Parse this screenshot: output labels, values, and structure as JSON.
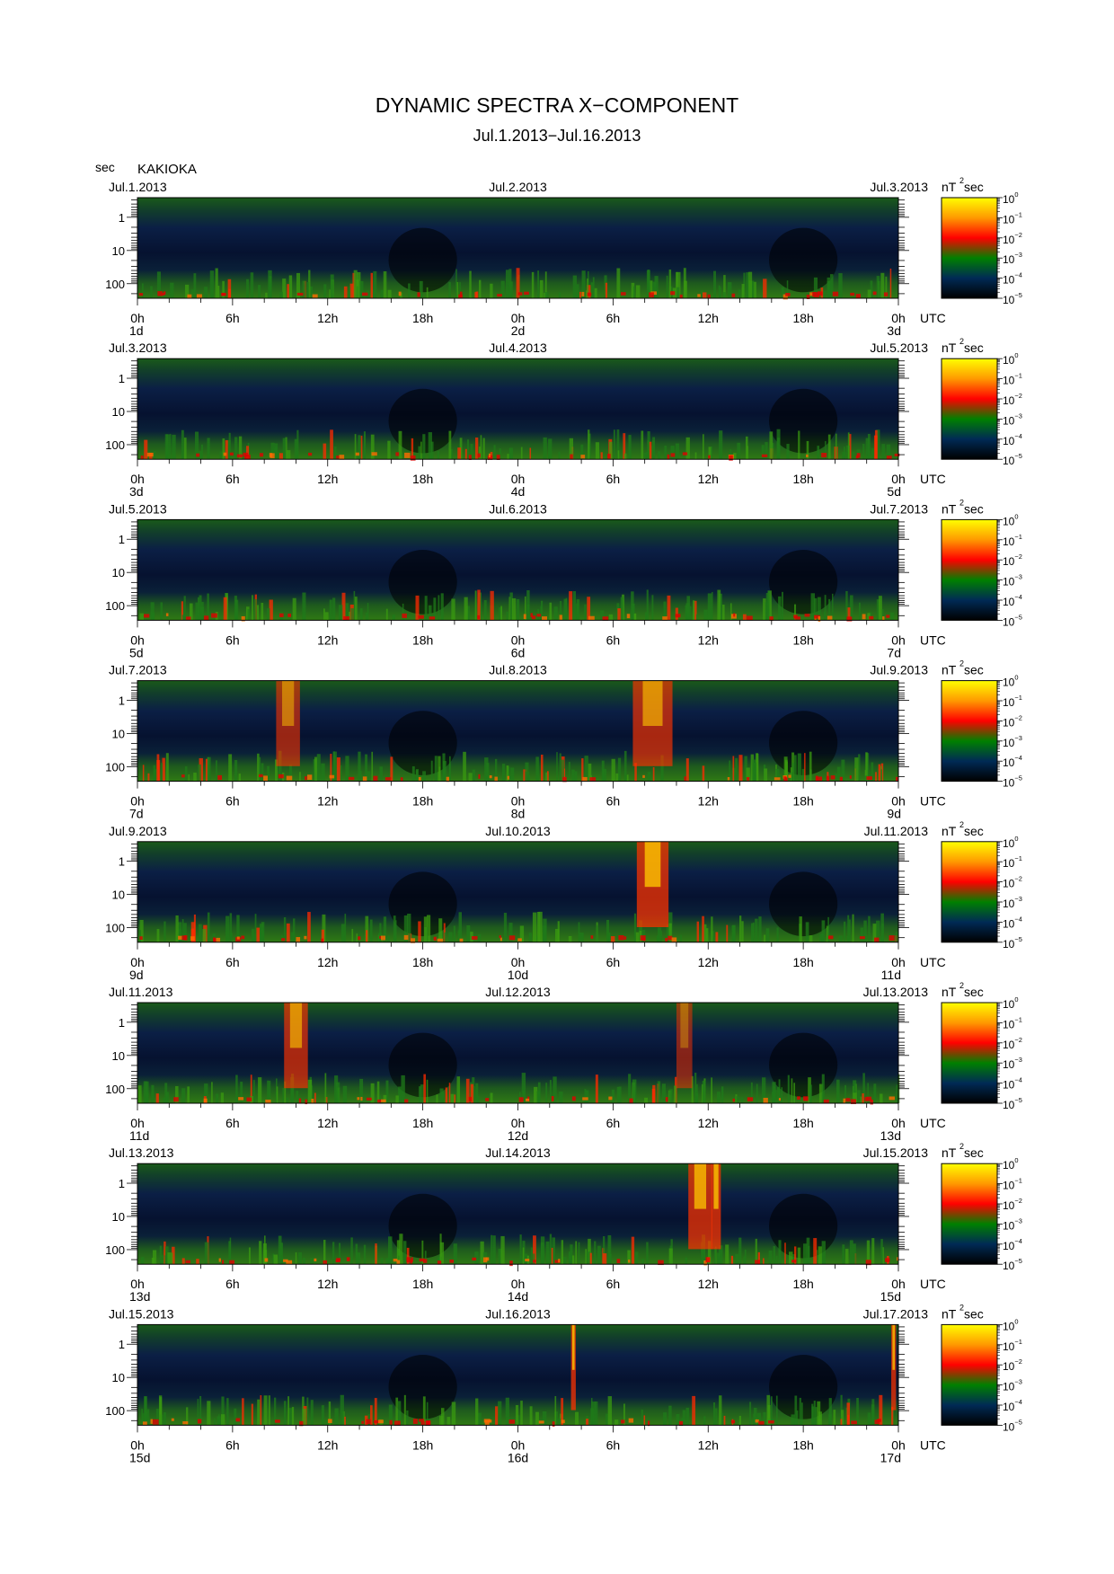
{
  "title": "DYNAMIC SPECTRA X−COMPONENT",
  "subtitle": "Jul.1.2013−Jul.16.2013",
  "y_unit": "sec",
  "station": "KAKIOKA",
  "colorbar": {
    "unit_base": "nT",
    "unit_exp": "2",
    "unit_tail": "sec",
    "labels": [
      {
        "base": "10",
        "exp": "0"
      },
      {
        "base": "10",
        "exp": "−1"
      },
      {
        "base": "10",
        "exp": "−2"
      },
      {
        "base": "10",
        "exp": "−3"
      },
      {
        "base": "10",
        "exp": "−4"
      },
      {
        "base": "10",
        "exp": "−5"
      }
    ],
    "colors": [
      "#ffff00",
      "#ff9900",
      "#ff0000",
      "#008000",
      "#002a55",
      "#000000"
    ]
  },
  "chart_data": {
    "type": "heatmap",
    "y_axis": {
      "label": "sec",
      "ticks": [
        "1",
        "10",
        "100"
      ],
      "scale": "log"
    },
    "x_axis": {
      "tick_labels": [
        "0h",
        "6h",
        "12h",
        "18h",
        "0h",
        "6h",
        "12h",
        "18h",
        "0h"
      ],
      "utc_label": "UTC"
    },
    "color_scale": {
      "scale": "log",
      "min": 1e-05,
      "max": 1,
      "unit": "nT^2 sec"
    },
    "panels": [
      {
        "date_left": "Jul.1.2013",
        "date_mid": "Jul.2.2013",
        "date_right": "Jul.3.2013",
        "day_left": "1d",
        "day_mid": "2d",
        "day_right": "3d",
        "events": []
      },
      {
        "date_left": "Jul.3.2013",
        "date_mid": "Jul.4.2013",
        "date_right": "Jul.5.2013",
        "day_left": "3d",
        "day_mid": "4d",
        "day_right": "5d",
        "events": []
      },
      {
        "date_left": "Jul.5.2013",
        "date_mid": "Jul.6.2013",
        "date_right": "Jul.7.2013",
        "day_left": "5d",
        "day_mid": "6d",
        "day_right": "7d",
        "events": []
      },
      {
        "date_left": "Jul.7.2013",
        "date_mid": "Jul.8.2013",
        "date_right": "Jul.9.2013",
        "day_left": "7d",
        "day_mid": "8d",
        "day_right": "9d",
        "events": [
          {
            "hour": 9.5,
            "width_h": 1.5,
            "level": 0.6
          },
          {
            "hour": 32.5,
            "width_h": 2.5,
            "level": 0.75
          }
        ]
      },
      {
        "date_left": "Jul.9.2013",
        "date_mid": "Jul.10.2013",
        "date_right": "Jul.11.2013",
        "day_left": "9d",
        "day_mid": "10d",
        "day_right": "11d",
        "events": [
          {
            "hour": 32.5,
            "width_h": 2.0,
            "level": 0.95
          }
        ]
      },
      {
        "date_left": "Jul.11.2013",
        "date_mid": "Jul.12.2013",
        "date_right": "Jul.13.2013",
        "day_left": "11d",
        "day_mid": "12d",
        "day_right": "13d",
        "events": [
          {
            "hour": 10.0,
            "width_h": 1.5,
            "level": 0.75
          },
          {
            "hour": 34.5,
            "width_h": 1.0,
            "level": 0.4
          }
        ]
      },
      {
        "date_left": "Jul.13.2013",
        "date_mid": "Jul.14.2013",
        "date_right": "Jul.15.2013",
        "day_left": "13d",
        "day_mid": "14d",
        "day_right": "15d",
        "events": [
          {
            "hour": 35.5,
            "width_h": 1.5,
            "level": 0.9
          },
          {
            "hour": 36.5,
            "width_h": 0.6,
            "level": 0.95
          }
        ]
      },
      {
        "date_left": "Jul.15.2013",
        "date_mid": "Jul.16.2013",
        "date_right": "Jul.17.2013",
        "day_left": "15d",
        "day_mid": "16d",
        "day_right": "17d",
        "events": [
          {
            "hour": 27.5,
            "width_h": 0.3,
            "level": 0.95
          },
          {
            "hour": 47.7,
            "width_h": 0.3,
            "level": 0.9
          }
        ]
      }
    ]
  }
}
